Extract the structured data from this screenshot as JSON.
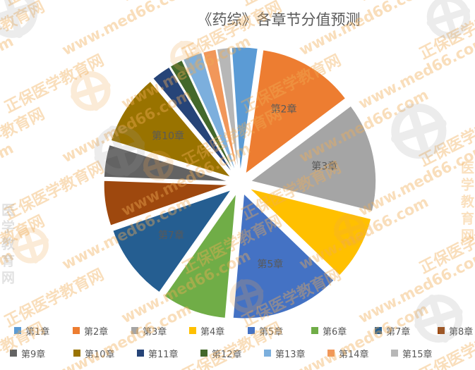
{
  "chart_data": {
    "type": "pie",
    "title": "《药综》各章节分值预测",
    "categories": [
      "第1章",
      "第2章",
      "第3章",
      "第4章",
      "第5章",
      "第6章",
      "第7章",
      "第8章",
      "第9章",
      "第10章",
      "第11章",
      "第12章",
      "第13章",
      "第14章",
      "第15章"
    ],
    "values": [
      4,
      15,
      17,
      10,
      17,
      10,
      12,
      7,
      5,
      11,
      3,
      2,
      3,
      2,
      2
    ],
    "total": 120,
    "colors": [
      "#5B9BD5",
      "#ED7D31",
      "#A5A5A5",
      "#FFC000",
      "#4472C4",
      "#70AD47",
      "#255E91",
      "#9E480E",
      "#636363",
      "#997300",
      "#264478",
      "#43682B",
      "#7CAFDD",
      "#F1975A",
      "#B7B7B7"
    ],
    "start_angle_deg": -4,
    "explode": "all-slices",
    "slice_labels_shown": [
      "第2章",
      "第3章",
      "第5章",
      "第7章",
      "第10章"
    ],
    "legend_position": "bottom",
    "legend_rows": 2,
    "text_color": "#595959"
  },
  "watermark": {
    "brand_text": "正保医学教育网",
    "url_text": "www.med66.com",
    "vertical_text": "医学教育网",
    "orange": "#F0A64E",
    "gray": "#9B9B9B"
  }
}
